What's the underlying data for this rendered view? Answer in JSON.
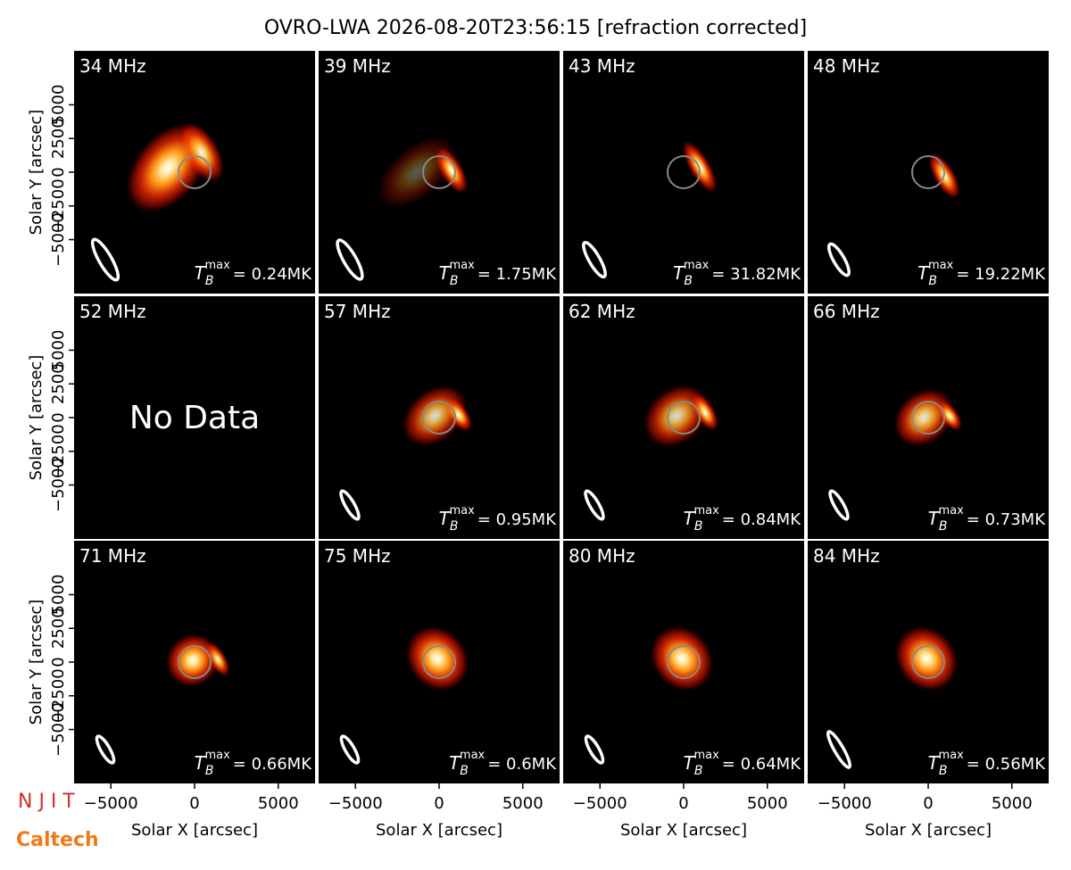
{
  "chart_data": {
    "type": "image",
    "title": "OVRO-LWA 2026-08-20T23:56:15 [refraction corrected]",
    "xlabel": "Solar X [arcsec]",
    "ylabel": "Solar Y [arcsec]",
    "xlim": [
      -7200,
      7200
    ],
    "ylim": [
      -9000,
      9000
    ],
    "xticks": [
      {
        "value": -5000,
        "label": "−5000"
      },
      0,
      5000
    ],
    "yticks": [
      {
        "value": -5000,
        "label": "−5000"
      },
      {
        "value": -2500,
        "label": "−2500"
      },
      0,
      2500,
      5000
    ],
    "tb_symbol": [
      "T",
      "B",
      "max"
    ],
    "panels": [
      {
        "label": "34 MHz",
        "tb": {
          "value": 0.24,
          "label": "= 0.24MK"
        }
      },
      {
        "label": "39 MHz",
        "tb": {
          "value": 1.75,
          "label": "= 1.75MK"
        }
      },
      {
        "label": "43 MHz",
        "tb": {
          "value": 31.82,
          "label": "= 31.82MK"
        }
      },
      {
        "label": "48 MHz",
        "tb": {
          "value": 19.22,
          "label": "= 19.22MK"
        }
      },
      {
        "label": "52 MHz",
        "no_data": "No Data"
      },
      {
        "label": "57 MHz",
        "tb": {
          "value": 0.95,
          "label": "= 0.95MK"
        }
      },
      {
        "label": "62 MHz",
        "tb": {
          "value": 0.84,
          "label": "= 0.84MK"
        }
      },
      {
        "label": "66 MHz",
        "tb": {
          "value": 0.73,
          "label": "= 0.73MK"
        }
      },
      {
        "label": "71 MHz",
        "tb": {
          "value": 0.66,
          "label": "= 0.66MK"
        }
      },
      {
        "label": "75 MHz",
        "tb": {
          "value": 0.6,
          "label": "= 0.6MK"
        }
      },
      {
        "label": "80 MHz",
        "tb": {
          "value": 0.64,
          "label": "= 0.64MK"
        }
      },
      {
        "label": "84 MHz",
        "tb": {
          "value": 0.56,
          "label": "= 0.56MK"
        }
      }
    ]
  },
  "logos": [
    "N J I T",
    "Caltech"
  ]
}
